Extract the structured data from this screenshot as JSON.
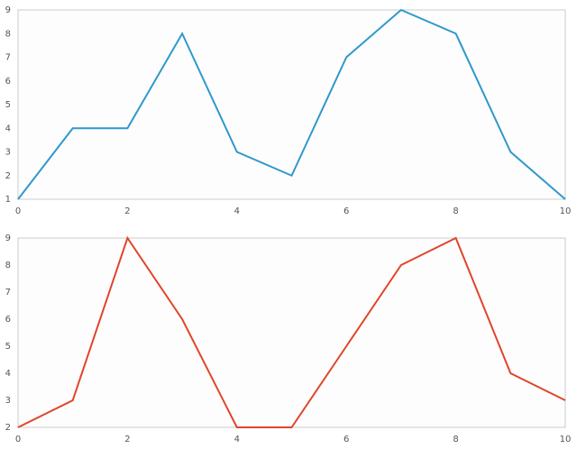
{
  "chart_data": [
    {
      "type": "line",
      "x": [
        0,
        1,
        2,
        3,
        4,
        5,
        6,
        7,
        8,
        9,
        10
      ],
      "values": [
        1,
        4,
        4,
        8,
        3,
        2,
        7,
        9,
        8,
        3,
        1
      ],
      "color": "#2e98cc",
      "xlim": [
        0,
        10
      ],
      "xticks": [
        0,
        2,
        4,
        6,
        8,
        10
      ],
      "ylim": [
        1,
        9
      ],
      "yticks": [
        1,
        2,
        3,
        4,
        5,
        6,
        7,
        8,
        9
      ]
    },
    {
      "type": "line",
      "x": [
        0,
        1,
        2,
        3,
        4,
        5,
        6,
        7,
        8,
        9,
        10
      ],
      "values": [
        2,
        3,
        9,
        6,
        2,
        2,
        5,
        8,
        9,
        4,
        3
      ],
      "color": "#e0452b",
      "xlim": [
        0,
        10
      ],
      "xticks": [
        0,
        2,
        4,
        6,
        8,
        10
      ],
      "ylim": [
        2,
        9
      ],
      "yticks": [
        2,
        3,
        4,
        5,
        6,
        7,
        8,
        9
      ]
    }
  ]
}
